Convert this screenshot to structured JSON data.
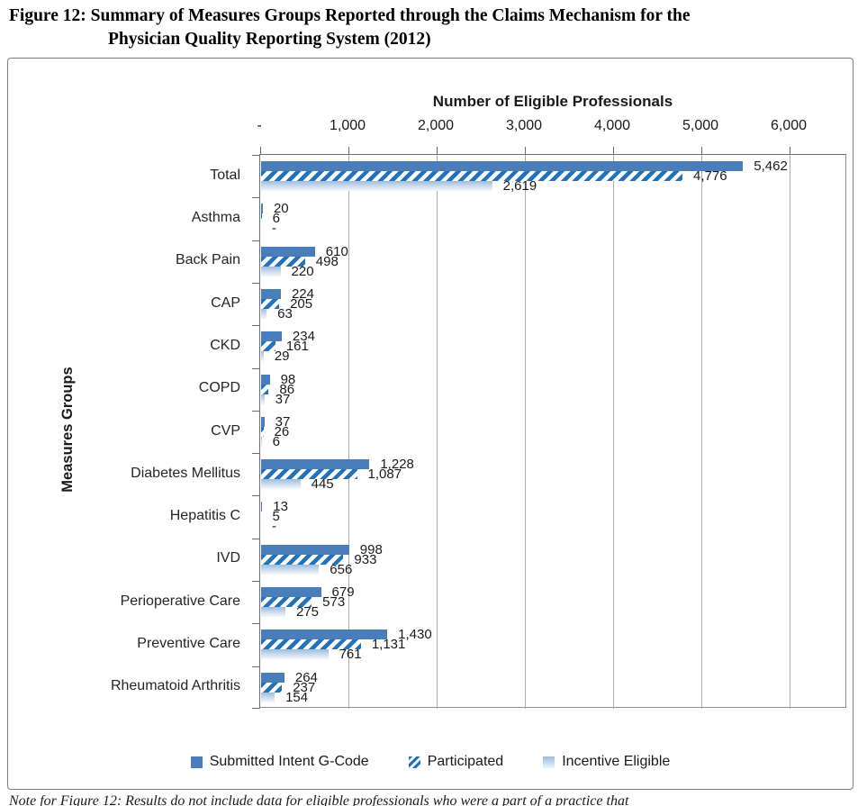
{
  "figure": {
    "caption_line1": "Figure 12: Summary of Measures Groups Reported through the Claims Mechanism for the",
    "caption_line2": "Physician Quality Reporting System (2012)"
  },
  "note": "Note for Figure 12: Results do not include data for eligible professionals who were a part of a practice that",
  "chart_data": {
    "type": "bar",
    "orientation": "horizontal",
    "title": "",
    "xlabel": "Number of Eligible Professionals",
    "ylabel": "Measures Groups",
    "xlim": [
      0,
      6000
    ],
    "x_tick_interval": 1000,
    "x_tick_labels": [
      "-",
      "1,000",
      "2,000",
      "3,000",
      "4,000",
      "5,000",
      "6,000"
    ],
    "grid": true,
    "legend_position": "bottom",
    "zero_display": "-",
    "categories": [
      "Total",
      "Asthma",
      "Back Pain",
      "CAP",
      "CKD",
      "COPD",
      "CVP",
      "Diabetes Mellitus",
      "Hepatitis C",
      "IVD",
      "Perioperative Care",
      "Preventive Care",
      "Rheumatoid Arthritis"
    ],
    "series": [
      {
        "name": "Submitted Intent G-Code",
        "pattern": "solid",
        "color": "#4a7ebb",
        "values": [
          5462,
          20,
          610,
          224,
          234,
          98,
          37,
          1228,
          13,
          998,
          679,
          1430,
          264
        ]
      },
      {
        "name": "Participated",
        "pattern": "hatched",
        "color": "#1f6fb5",
        "values": [
          4776,
          6,
          498,
          205,
          161,
          86,
          26,
          1087,
          5,
          933,
          573,
          1131,
          237
        ]
      },
      {
        "name": "Incentive Eligible",
        "pattern": "gradient",
        "color": "#9cbcdf",
        "values": [
          2619,
          0,
          220,
          63,
          29,
          37,
          6,
          445,
          0,
          656,
          275,
          761,
          154
        ]
      }
    ],
    "colors": {
      "axis_line": "#6e6e6e",
      "gridline": "#adadad",
      "chart_border": "#7f7f7f"
    }
  }
}
